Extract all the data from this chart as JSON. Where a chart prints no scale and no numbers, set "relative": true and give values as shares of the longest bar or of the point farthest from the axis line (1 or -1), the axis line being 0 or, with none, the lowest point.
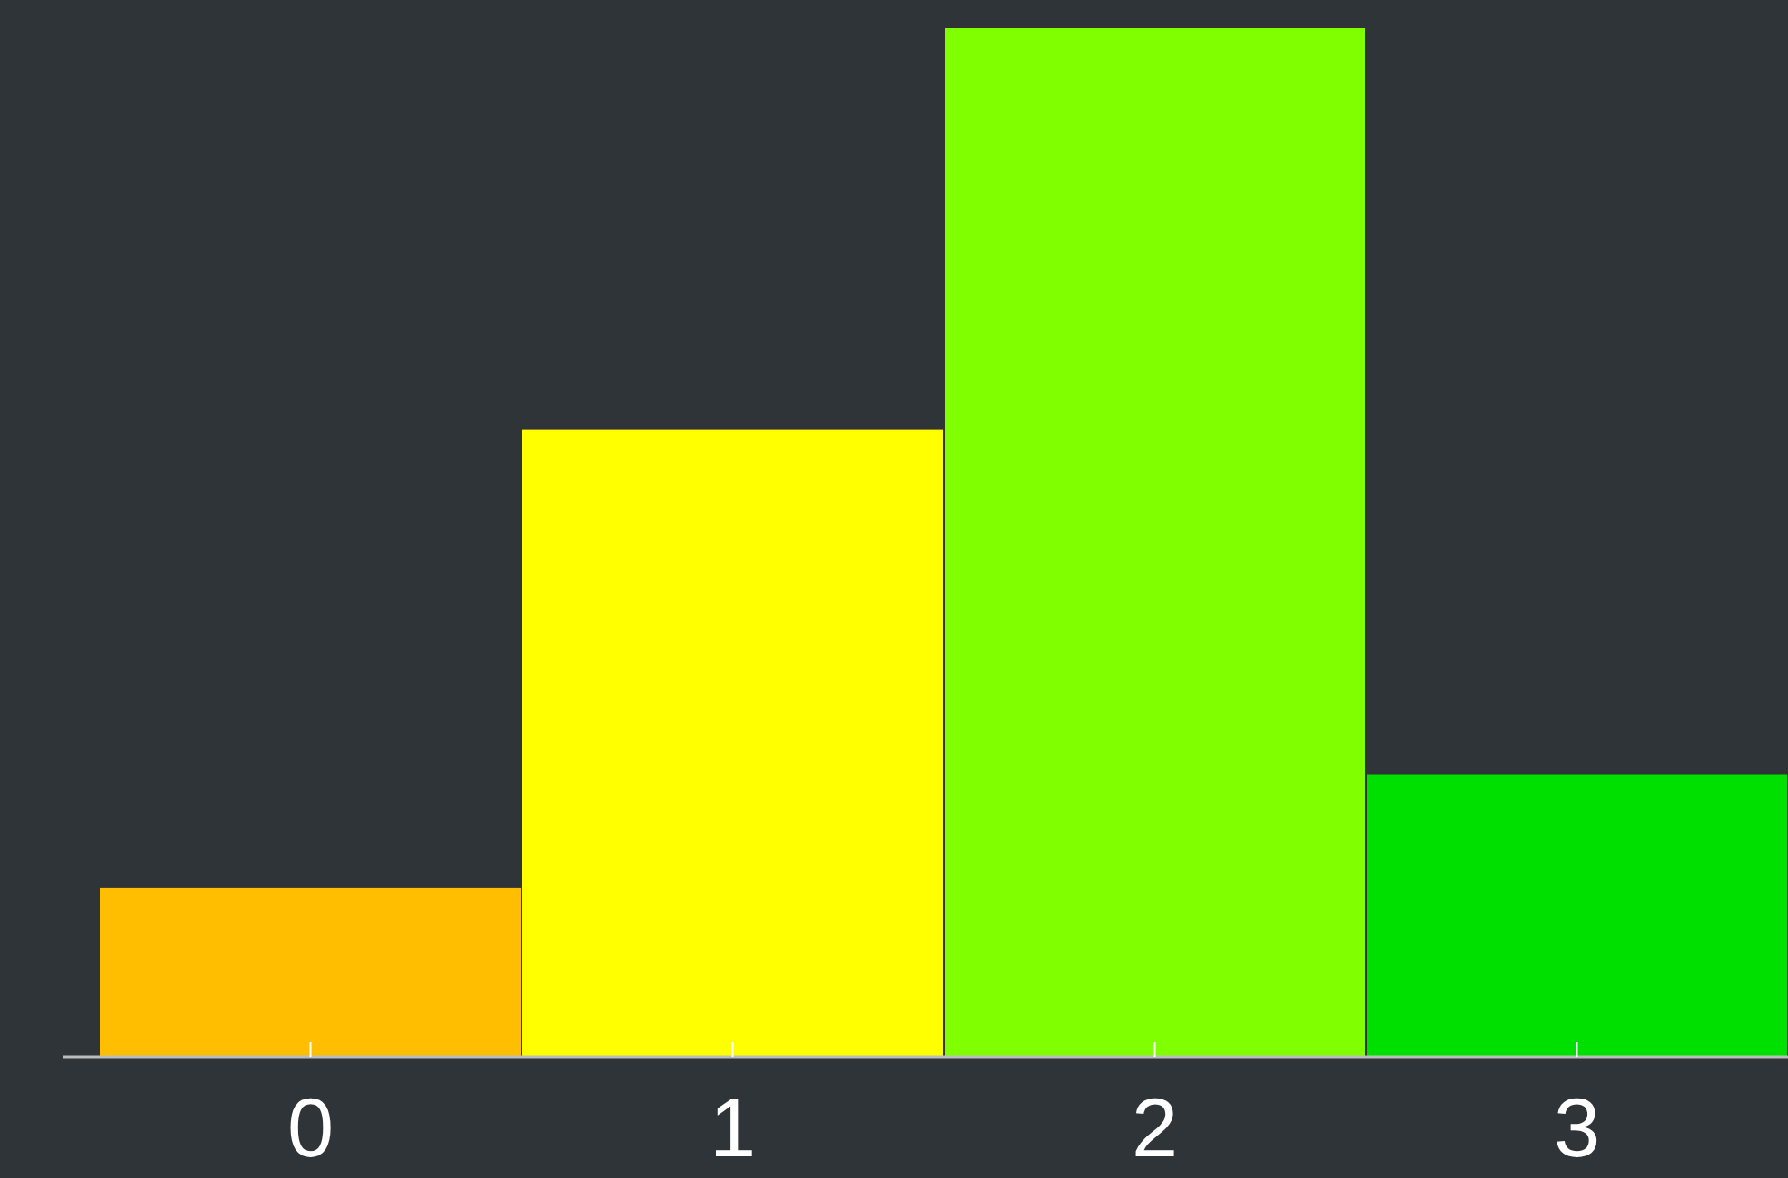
{
  "chart_data": {
    "type": "bar",
    "categories": [
      "0",
      "1",
      "2",
      "3"
    ],
    "values": [
      0.165,
      0.61,
      1,
      0.275
    ],
    "colors": [
      "#ffbf00",
      "#ffff00",
      "#80ff00",
      "#00e000"
    ],
    "relative": true
  }
}
